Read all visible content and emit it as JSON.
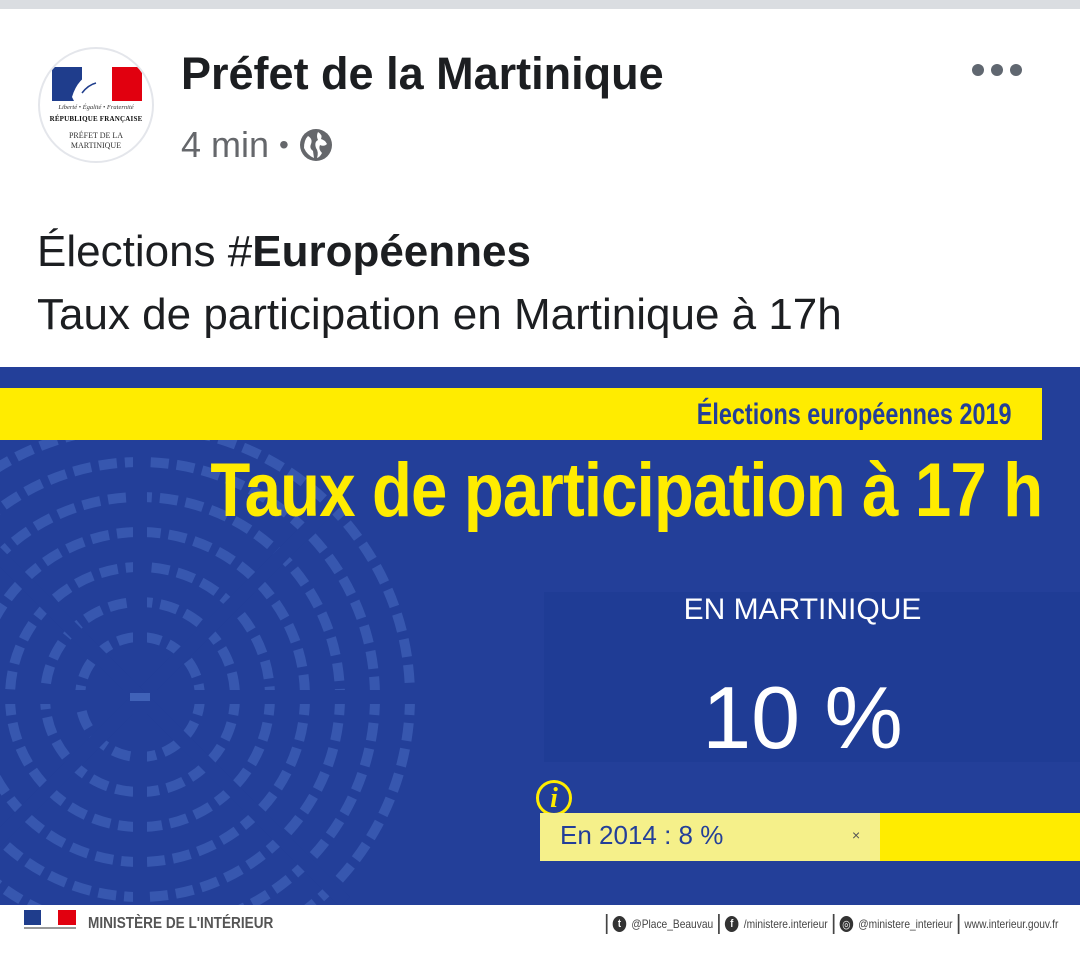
{
  "post": {
    "author": "Préfet de la Martinique",
    "time": "4 min",
    "visibility_icon": "globe-icon",
    "text_prefix": "Élections #",
    "hashtag": "Européennes",
    "text_line2": "Taux de participation en Martinique à 17h"
  },
  "avatar": {
    "motto": "Liberté • Égalité • Fraternité",
    "republic": "RÉPUBLIQUE FRANÇAISE",
    "prefecture_line1": "PRÉFET DE LA",
    "prefecture_line2": "MARTINIQUE"
  },
  "graphic": {
    "header": "Élections européennes 2019",
    "title": "Taux de participation à 17 h",
    "region": "EN MARTINIQUE",
    "rate": "10 %",
    "info_icon": "i",
    "previous": "En 2014 : 8 %",
    "close_mark": "×"
  },
  "footer": {
    "ministry": "MINISTÈRE DE L'INTÉRIEUR",
    "twitter": "@Place_Beauvau",
    "facebook": "/ministere.interieur",
    "instagram": "@ministere_interieur",
    "website": "www.interieur.gouv.fr"
  },
  "colors": {
    "infographic_blue": "#233f99",
    "infographic_yellow": "#ffec00",
    "text_dark": "#1c1e21",
    "text_meta": "#65676b"
  }
}
